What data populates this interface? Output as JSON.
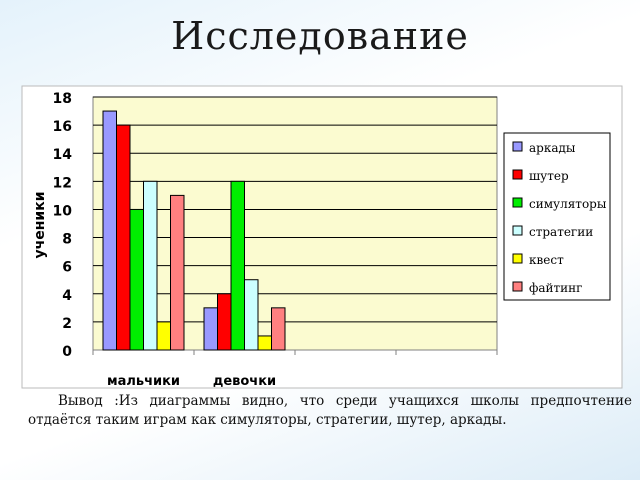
{
  "slide": {
    "title": "Исследование",
    "conclusion": "Вывод :Из диаграммы видно, что среди учащихся школы предпочтение отдаётся таким играм как симуляторы, стратегии, шутер, аркады."
  },
  "chart_data": {
    "type": "bar",
    "ylabel": "ученики",
    "xlabel": "",
    "ylim": [
      0,
      18
    ],
    "yticks": [
      0,
      2,
      4,
      6,
      8,
      10,
      12,
      14,
      16,
      18
    ],
    "grid": true,
    "legend_position": "right",
    "plot_background": "#fbfbd0",
    "category_slots": 4,
    "categories": [
      "мальчики",
      "девочки"
    ],
    "series": [
      {
        "name": "аркады",
        "color": "#9999ff",
        "values": [
          17,
          3
        ]
      },
      {
        "name": "шутер",
        "color": "#ff0000",
        "values": [
          16,
          4
        ]
      },
      {
        "name": "симуляторы",
        "color": "#00ee00",
        "values": [
          10,
          12
        ]
      },
      {
        "name": "стратегии",
        "color": "#ccffff",
        "values": [
          12,
          5
        ]
      },
      {
        "name": "квест",
        "color": "#ffff00",
        "values": [
          2,
          1
        ]
      },
      {
        "name": "файтинг",
        "color": "#ff8080",
        "values": [
          11,
          3
        ]
      }
    ]
  }
}
